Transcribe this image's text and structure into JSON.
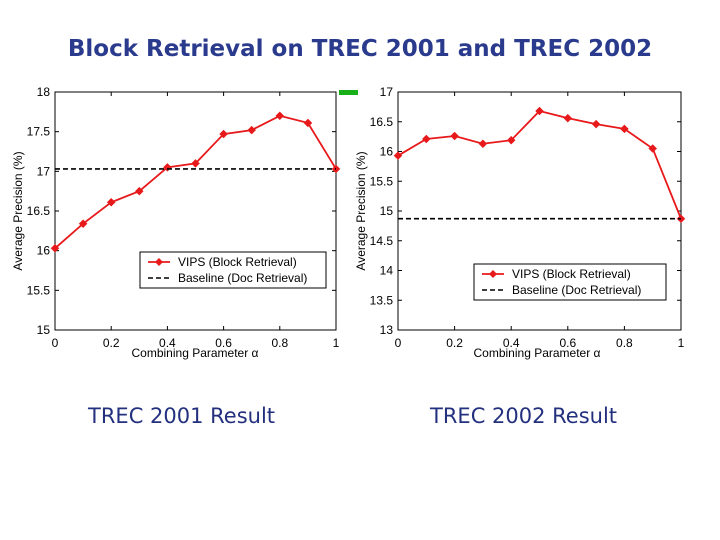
{
  "title": "Block Retrieval on TREC 2001 and TREC 2002",
  "captions": {
    "left": "TREC 2001 Result",
    "right": "TREC 2002 Result"
  },
  "colors": {
    "title": "#2a3a8c",
    "series": "#e8191b",
    "baseline": "#000000",
    "accent_mark": "#18b018"
  },
  "chart_data": [
    {
      "type": "line",
      "title": "",
      "xlabel": "Combining Parameter α",
      "ylabel": "Average Precision (%)",
      "xlim": [
        0,
        1
      ],
      "ylim": [
        15,
        18
      ],
      "xticks": [
        0,
        0.2,
        0.4,
        0.6,
        0.8,
        1
      ],
      "xtick_labels": [
        "0",
        "0.2",
        "0.4",
        "0.6",
        "0.8",
        "1"
      ],
      "yticks": [
        15,
        15.5,
        16,
        16.5,
        17,
        17.5,
        18
      ],
      "ytick_labels": [
        "15",
        "15.5",
        "16",
        "16.5",
        "17",
        "17.5",
        "18"
      ],
      "x": [
        0,
        0.1,
        0.2,
        0.3,
        0.4,
        0.5,
        0.6,
        0.7,
        0.8,
        0.9,
        1.0
      ],
      "series": [
        {
          "name": "VIPS (Block Retrieval)",
          "style": "solid-diamond",
          "values": [
            16.03,
            16.34,
            16.61,
            16.75,
            17.05,
            17.1,
            17.47,
            17.52,
            17.7,
            17.61,
            17.03
          ]
        },
        {
          "name": "Baseline (Doc Retrieval)",
          "style": "dashed",
          "values": [
            17.03,
            17.03,
            17.03,
            17.03,
            17.03,
            17.03,
            17.03,
            17.03,
            17.03,
            17.03,
            17.03
          ]
        }
      ],
      "legend": [
        "VIPS (Block Retrieval)",
        "Baseline (Doc Retrieval)"
      ],
      "legend_position": "lower-right"
    },
    {
      "type": "line",
      "title": "",
      "xlabel": "Combining Parameter α",
      "ylabel": "Average Precision (%)",
      "xlim": [
        0,
        1
      ],
      "ylim": [
        13,
        17
      ],
      "xticks": [
        0,
        0.2,
        0.4,
        0.6,
        0.8,
        1
      ],
      "xtick_labels": [
        "0",
        "0.2",
        "0.4",
        "0.6",
        "0.8",
        "1"
      ],
      "yticks": [
        13,
        13.5,
        14,
        14.5,
        15,
        15.5,
        16,
        16.5,
        17
      ],
      "ytick_labels": [
        "13",
        "13.5",
        "14",
        "14.5",
        "15",
        "15.5",
        "16",
        "16.5",
        "17"
      ],
      "x": [
        0,
        0.1,
        0.2,
        0.3,
        0.4,
        0.5,
        0.6,
        0.7,
        0.8,
        0.9,
        1.0
      ],
      "series": [
        {
          "name": "VIPS (Block Retrieval)",
          "style": "solid-diamond",
          "values": [
            15.93,
            16.21,
            16.26,
            16.13,
            16.19,
            16.68,
            16.56,
            16.46,
            16.38,
            16.05,
            14.87
          ]
        },
        {
          "name": "Baseline (Doc Retrieval)",
          "style": "dashed",
          "values": [
            14.87,
            14.87,
            14.87,
            14.87,
            14.87,
            14.87,
            14.87,
            14.87,
            14.87,
            14.87,
            14.87
          ]
        }
      ],
      "legend": [
        "VIPS (Block Retrieval)",
        "Baseline (Doc Retrieval)"
      ],
      "legend_position": "lower-right"
    }
  ]
}
